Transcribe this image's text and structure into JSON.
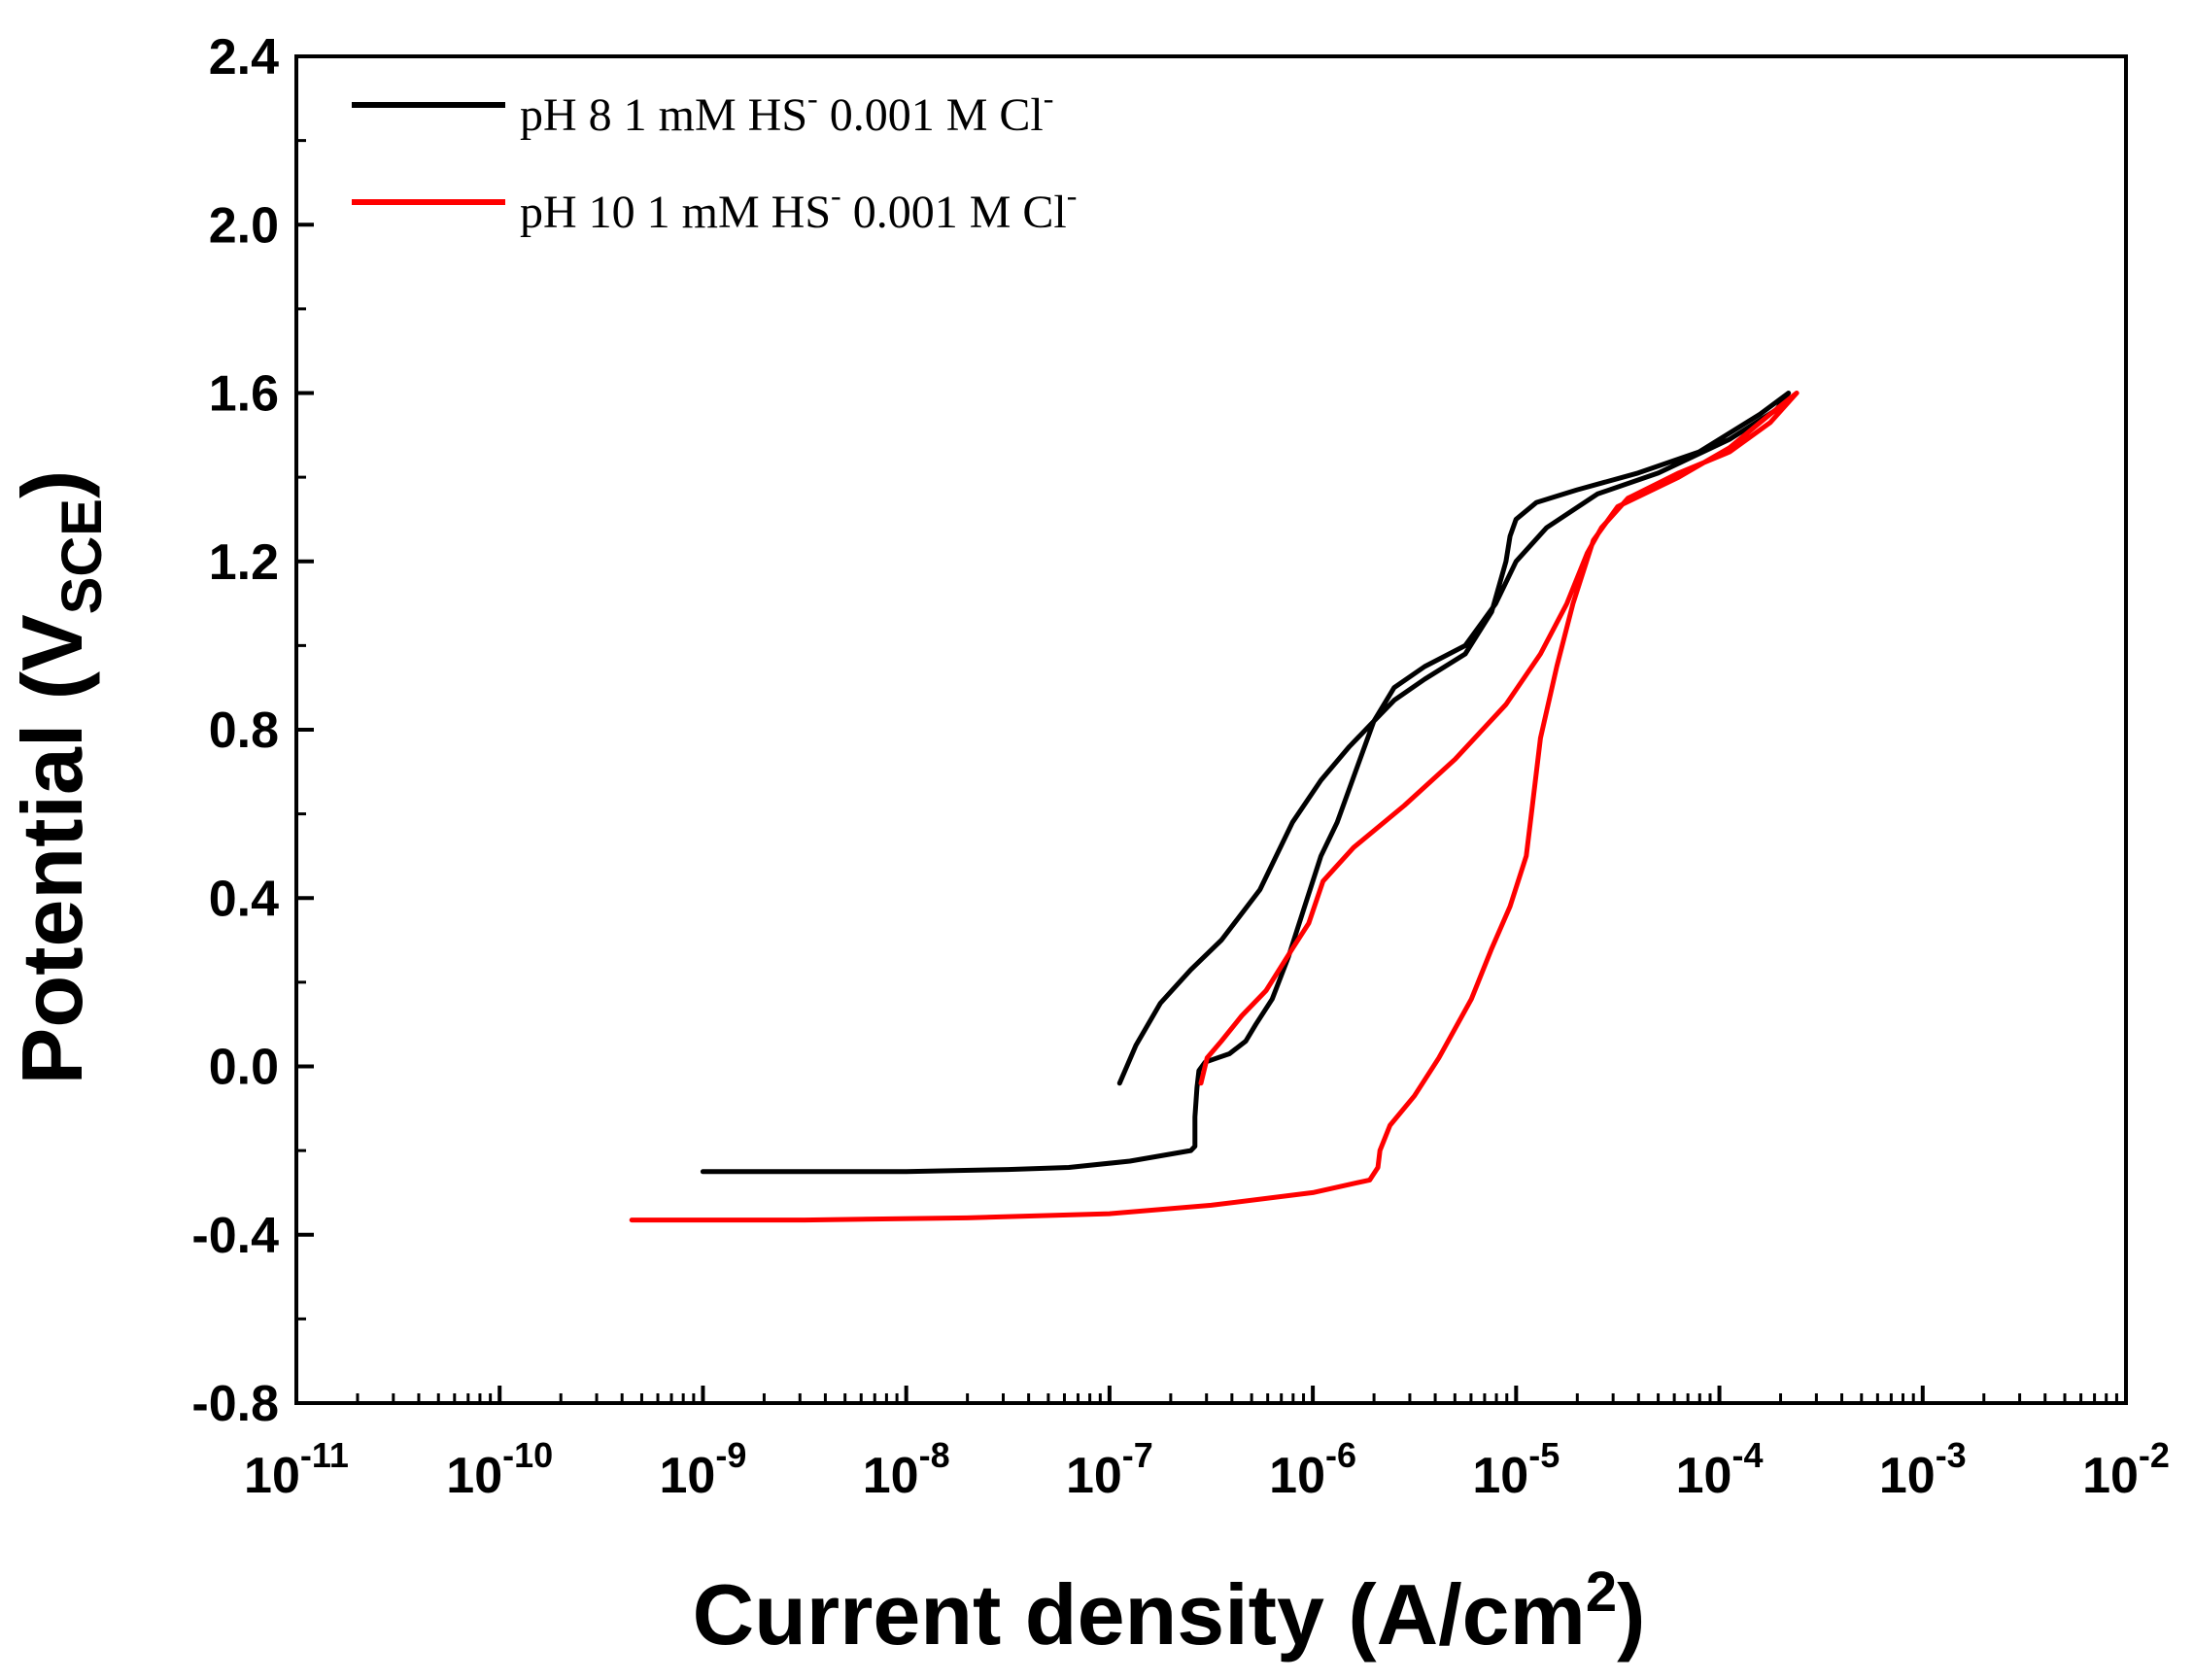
{
  "chart_data": {
    "type": "line",
    "title": "",
    "xlabel": "Current density (A/cm",
    "xlabel_sup": "2",
    "xlabel_close": ")",
    "ylabel": "Potential (V",
    "ylabel_sub": "SCE",
    "ylabel_close": ")",
    "xscale": "log",
    "xlim_exp": [
      -11,
      -2
    ],
    "ylim": [
      -0.8,
      2.4
    ],
    "grid": false,
    "legend_position": "top-left",
    "y_ticks": [
      "-0.8",
      "-0.4",
      "0.0",
      "0.4",
      "0.8",
      "1.2",
      "1.6",
      "2.0",
      "2.4"
    ],
    "y_tick_values": [
      -0.8,
      -0.4,
      0.0,
      0.4,
      0.8,
      1.2,
      1.6,
      2.0,
      2.4
    ],
    "x_ticks": [
      {
        "base": "10",
        "exp": "-11",
        "value": -11
      },
      {
        "base": "10",
        "exp": "-10",
        "value": -10
      },
      {
        "base": "10",
        "exp": "-9",
        "value": -9
      },
      {
        "base": "10",
        "exp": "-8",
        "value": -8
      },
      {
        "base": "10",
        "exp": "-7",
        "value": -7
      },
      {
        "base": "10",
        "exp": "-6",
        "value": -6
      },
      {
        "base": "10",
        "exp": "-5",
        "value": -5
      },
      {
        "base": "10",
        "exp": "-4",
        "value": -4
      },
      {
        "base": "10",
        "exp": "-3",
        "value": -3
      },
      {
        "base": "10",
        "exp": "-2",
        "value": -2
      }
    ],
    "series": [
      {
        "name": "pH 8  1 mM HS",
        "name_sup": "-",
        "name_rest": " 0.001 M Cl",
        "name_rest_sup": "-",
        "color": "#000000",
        "points_log_x_y": [
          [
            -9.0,
            -0.25
          ],
          [
            -8.0,
            -0.25
          ],
          [
            -7.5,
            -0.245
          ],
          [
            -7.2,
            -0.24
          ],
          [
            -6.9,
            -0.225
          ],
          [
            -6.6,
            -0.2
          ],
          [
            -6.58,
            -0.19
          ],
          [
            -6.58,
            -0.12
          ],
          [
            -6.57,
            -0.05
          ],
          [
            -6.56,
            -0.01
          ],
          [
            -6.53,
            0.01
          ],
          [
            -6.47,
            0.02
          ],
          [
            -6.41,
            0.03
          ],
          [
            -6.33,
            0.06
          ],
          [
            -6.28,
            0.1
          ],
          [
            -6.2,
            0.16
          ],
          [
            -6.12,
            0.26
          ],
          [
            -6.04,
            0.38
          ],
          [
            -5.96,
            0.5
          ],
          [
            -5.88,
            0.58
          ],
          [
            -5.79,
            0.7
          ],
          [
            -5.7,
            0.82
          ],
          [
            -5.6,
            0.9
          ],
          [
            -5.45,
            0.95
          ],
          [
            -5.25,
            1.0
          ],
          [
            -5.1,
            1.1
          ],
          [
            -5.0,
            1.2
          ],
          [
            -4.85,
            1.28
          ],
          [
            -4.6,
            1.36
          ],
          [
            -4.3,
            1.41
          ],
          [
            -3.95,
            1.49
          ],
          [
            -3.72,
            1.56
          ],
          [
            -3.66,
            1.6
          ],
          [
            -3.8,
            1.55
          ],
          [
            -4.1,
            1.46
          ],
          [
            -4.4,
            1.41
          ],
          [
            -4.7,
            1.37
          ],
          [
            -4.9,
            1.34
          ],
          [
            -5.0,
            1.3
          ],
          [
            -5.03,
            1.26
          ],
          [
            -5.05,
            1.2
          ],
          [
            -5.12,
            1.08
          ],
          [
            -5.25,
            0.98
          ],
          [
            -5.45,
            0.92
          ],
          [
            -5.6,
            0.87
          ],
          [
            -5.7,
            0.82
          ],
          [
            -5.82,
            0.76
          ],
          [
            -5.96,
            0.68
          ],
          [
            -6.1,
            0.58
          ],
          [
            -6.26,
            0.42
          ],
          [
            -6.45,
            0.3
          ],
          [
            -6.6,
            0.23
          ],
          [
            -6.75,
            0.15
          ],
          [
            -6.87,
            0.05
          ],
          [
            -6.95,
            -0.04
          ]
        ]
      },
      {
        "name": "pH 10  1 mM HS",
        "name_sup": "-",
        "name_rest": " 0.001 M Cl",
        "name_rest_sup": "-",
        "color": "#ff0000",
        "points_log_x_y": [
          [
            -9.35,
            -0.365
          ],
          [
            -8.5,
            -0.365
          ],
          [
            -7.7,
            -0.36
          ],
          [
            -7.0,
            -0.35
          ],
          [
            -6.5,
            -0.33
          ],
          [
            -6.0,
            -0.3
          ],
          [
            -5.72,
            -0.27
          ],
          [
            -5.68,
            -0.24
          ],
          [
            -5.67,
            -0.2
          ],
          [
            -5.62,
            -0.14
          ],
          [
            -5.5,
            -0.07
          ],
          [
            -5.38,
            0.02
          ],
          [
            -5.22,
            0.16
          ],
          [
            -5.12,
            0.28
          ],
          [
            -5.03,
            0.38
          ],
          [
            -4.95,
            0.5
          ],
          [
            -4.92,
            0.62
          ],
          [
            -4.88,
            0.78
          ],
          [
            -4.8,
            0.95
          ],
          [
            -4.72,
            1.1
          ],
          [
            -4.62,
            1.25
          ],
          [
            -4.5,
            1.33
          ],
          [
            -4.2,
            1.4
          ],
          [
            -3.95,
            1.47
          ],
          [
            -3.75,
            1.55
          ],
          [
            -3.62,
            1.6
          ],
          [
            -3.75,
            1.53
          ],
          [
            -3.95,
            1.46
          ],
          [
            -4.2,
            1.41
          ],
          [
            -4.45,
            1.35
          ],
          [
            -4.58,
            1.28
          ],
          [
            -4.65,
            1.22
          ],
          [
            -4.75,
            1.1
          ],
          [
            -4.88,
            0.98
          ],
          [
            -5.05,
            0.86
          ],
          [
            -5.3,
            0.73
          ],
          [
            -5.55,
            0.62
          ],
          [
            -5.8,
            0.52
          ],
          [
            -5.95,
            0.44
          ],
          [
            -6.02,
            0.34
          ],
          [
            -6.1,
            0.28
          ],
          [
            -6.23,
            0.18
          ],
          [
            -6.35,
            0.12
          ],
          [
            -6.45,
            0.06
          ],
          [
            -6.52,
            0.02
          ],
          [
            -6.55,
            -0.04
          ]
        ]
      }
    ]
  }
}
